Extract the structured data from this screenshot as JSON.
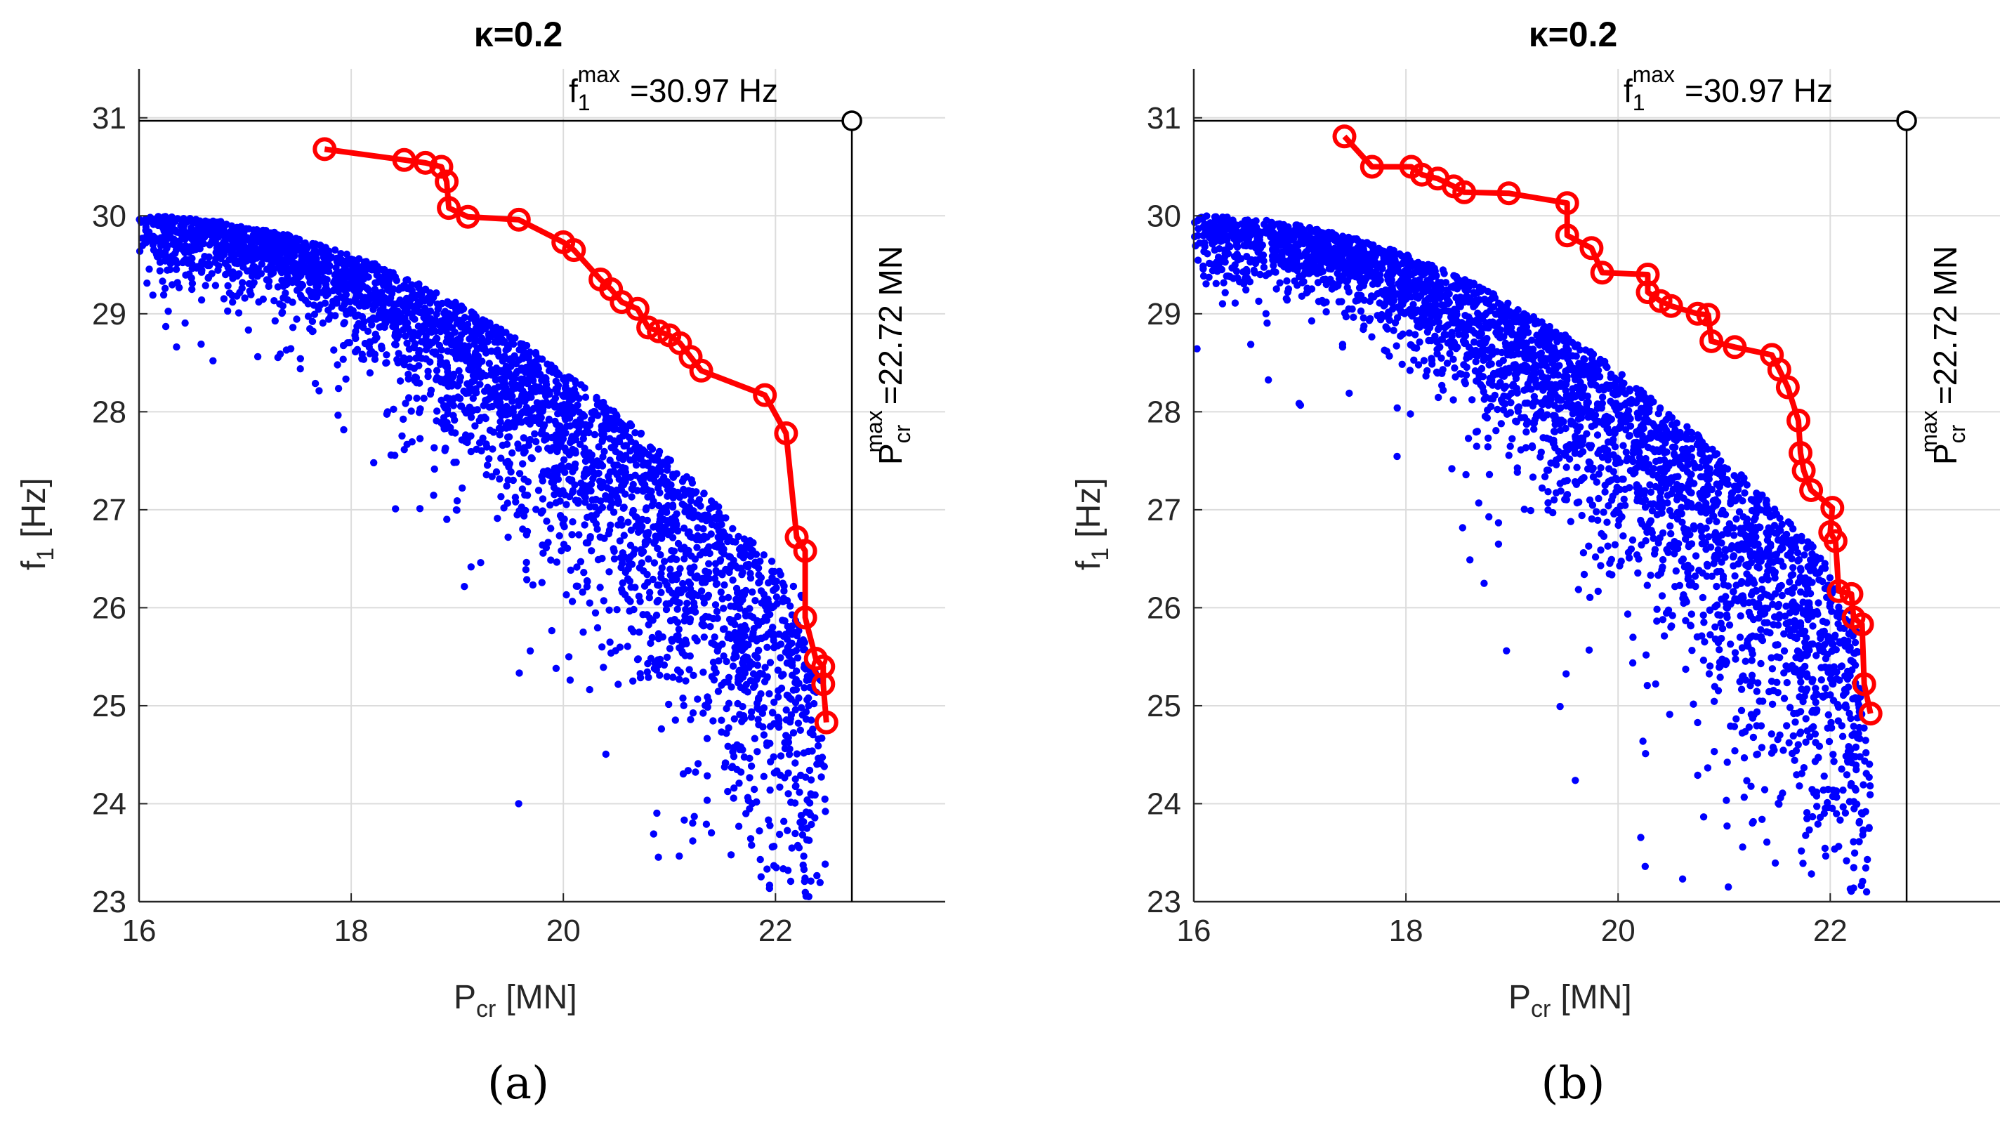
{
  "figure": {
    "panels": [
      "(a)",
      "(b)"
    ]
  },
  "chart_data": [
    {
      "type": "scatter",
      "panel": "(a)",
      "title": "κ=0.2",
      "xlabel_main": "P",
      "xlabel_sub": "cr",
      "xlabel_unit": "[MN]",
      "ylabel_main": "f",
      "ylabel_sub": "1",
      "ylabel_unit": "[Hz]",
      "xlim": [
        16,
        23.6
      ],
      "ylim": [
        23,
        31.5
      ],
      "xticks": [
        16,
        18,
        20,
        22
      ],
      "yticks": [
        23,
        24,
        25,
        26,
        27,
        28,
        29,
        30,
        31
      ],
      "grid": true,
      "reference_point": {
        "x": 22.72,
        "y": 30.97
      },
      "annotation_f": {
        "symbol": "f",
        "sub": "1",
        "sup": "max",
        "text": "=30.97 Hz"
      },
      "annotation_p": {
        "symbol": "P",
        "sub": "cr",
        "sup": "max",
        "text": "=22.72 MN"
      },
      "cloud": {
        "seed": 11,
        "count": 3300,
        "color": "#0000ff",
        "lowerTail": 1.0
      },
      "pareto_front": {
        "color": "#ff0000",
        "points": [
          [
            17.75,
            30.68
          ],
          [
            18.5,
            30.57
          ],
          [
            18.7,
            30.54
          ],
          [
            18.85,
            30.5
          ],
          [
            18.9,
            30.35
          ],
          [
            18.92,
            30.08
          ],
          [
            19.1,
            29.99
          ],
          [
            19.58,
            29.96
          ],
          [
            20.0,
            29.73
          ],
          [
            20.1,
            29.65
          ],
          [
            20.35,
            29.35
          ],
          [
            20.45,
            29.25
          ],
          [
            20.55,
            29.12
          ],
          [
            20.7,
            29.05
          ],
          [
            20.8,
            28.86
          ],
          [
            20.9,
            28.82
          ],
          [
            21.0,
            28.78
          ],
          [
            21.1,
            28.7
          ],
          [
            21.2,
            28.56
          ],
          [
            21.3,
            28.42
          ],
          [
            21.9,
            28.17
          ],
          [
            22.1,
            27.78
          ],
          [
            22.2,
            26.72
          ],
          [
            22.28,
            26.58
          ],
          [
            22.28,
            25.9
          ],
          [
            22.38,
            25.48
          ],
          [
            22.45,
            25.4
          ],
          [
            22.45,
            25.22
          ],
          [
            22.48,
            24.83
          ]
        ]
      }
    },
    {
      "type": "scatter",
      "panel": "(b)",
      "title": "κ=0.2",
      "xlabel_main": "P",
      "xlabel_sub": "cr",
      "xlabel_unit": "[MN]",
      "ylabel_main": "f",
      "ylabel_sub": "1",
      "ylabel_unit": "[Hz]",
      "xlim": [
        16,
        23.6
      ],
      "ylim": [
        23,
        31.5
      ],
      "xticks": [
        16,
        18,
        20,
        22
      ],
      "yticks": [
        23,
        24,
        25,
        26,
        27,
        28,
        29,
        30,
        31
      ],
      "grid": true,
      "reference_point": {
        "x": 22.72,
        "y": 30.97
      },
      "annotation_f": {
        "symbol": "f",
        "sub": "1",
        "sup": "max",
        "text": "=30.97 Hz"
      },
      "annotation_p": {
        "symbol": "P",
        "sub": "cr",
        "sup": "max",
        "text": "=22.72 MN"
      },
      "cloud": {
        "seed": 29,
        "count": 3300,
        "color": "#0000ff",
        "lowerTail": 1.0
      },
      "pareto_front": {
        "color": "#ff0000",
        "points": [
          [
            17.42,
            30.81
          ],
          [
            17.68,
            30.5
          ],
          [
            18.05,
            30.5
          ],
          [
            18.15,
            30.42
          ],
          [
            18.3,
            30.38
          ],
          [
            18.45,
            30.3
          ],
          [
            18.55,
            30.24
          ],
          [
            18.97,
            30.23
          ],
          [
            19.52,
            30.13
          ],
          [
            19.52,
            29.8
          ],
          [
            19.75,
            29.67
          ],
          [
            19.85,
            29.42
          ],
          [
            20.28,
            29.4
          ],
          [
            20.28,
            29.22
          ],
          [
            20.4,
            29.13
          ],
          [
            20.5,
            29.08
          ],
          [
            20.75,
            29.0
          ],
          [
            20.85,
            28.99
          ],
          [
            20.88,
            28.72
          ],
          [
            21.1,
            28.66
          ],
          [
            21.45,
            28.58
          ],
          [
            21.52,
            28.43
          ],
          [
            21.6,
            28.25
          ],
          [
            21.7,
            27.91
          ],
          [
            21.72,
            27.58
          ],
          [
            21.75,
            27.4
          ],
          [
            21.82,
            27.2
          ],
          [
            22.02,
            27.02
          ],
          [
            22.0,
            26.77
          ],
          [
            22.05,
            26.68
          ],
          [
            22.08,
            26.17
          ],
          [
            22.2,
            26.14
          ],
          [
            22.22,
            25.9
          ],
          [
            22.3,
            25.83
          ],
          [
            22.32,
            25.22
          ],
          [
            22.38,
            24.92
          ]
        ]
      }
    }
  ]
}
